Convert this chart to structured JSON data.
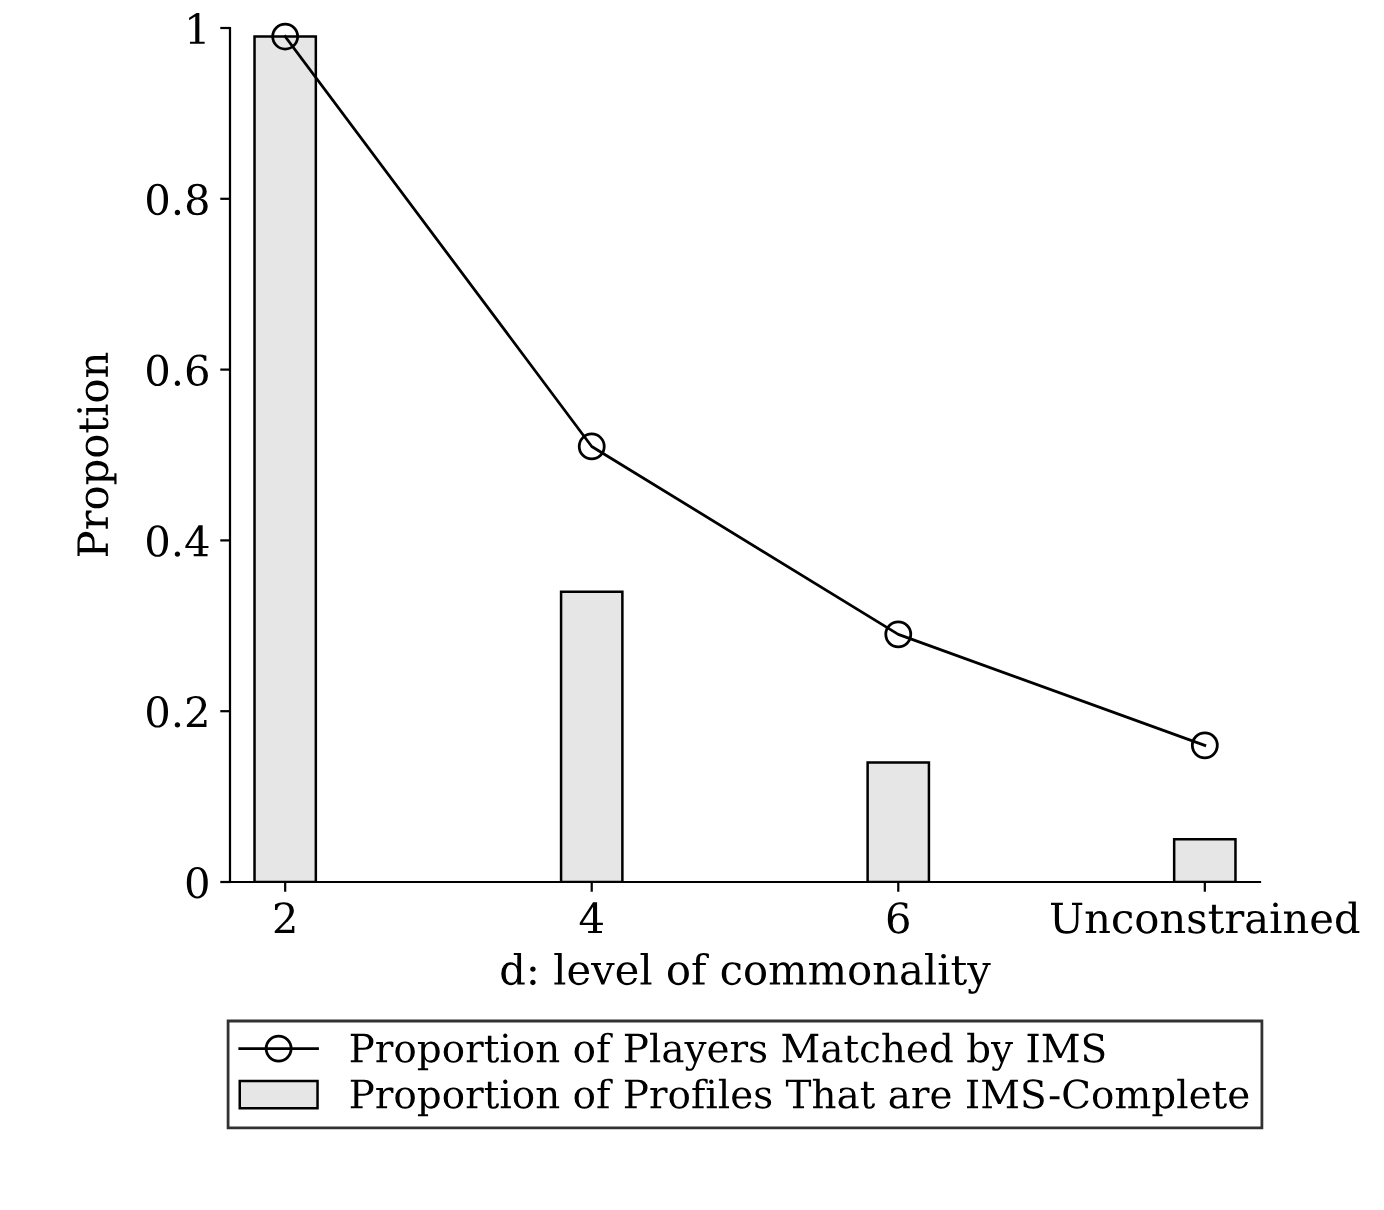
{
  "chart_data": {
    "type": "bar",
    "xlabel": "d: level of commonality",
    "ylabel": "Propotion",
    "categories": [
      "2",
      "4",
      "6",
      "Unconstrained"
    ],
    "series": [
      {
        "name": "Proportion of Players Matched by IMS",
        "type": "line",
        "color": "#000000",
        "marker": "circle",
        "values": [
          0.99,
          0.51,
          0.29,
          0.16
        ]
      },
      {
        "name": "Proportion of Profiles That are IMS-Complete",
        "color": "#e6e6e6",
        "values": [
          0.99,
          0.34,
          0.14,
          0.05
        ]
      }
    ],
    "ylim": [
      0,
      1
    ],
    "yticks": [
      0,
      0.2,
      0.4,
      0.6,
      0.8,
      1
    ],
    "grid": false,
    "legend": "bottom"
  }
}
